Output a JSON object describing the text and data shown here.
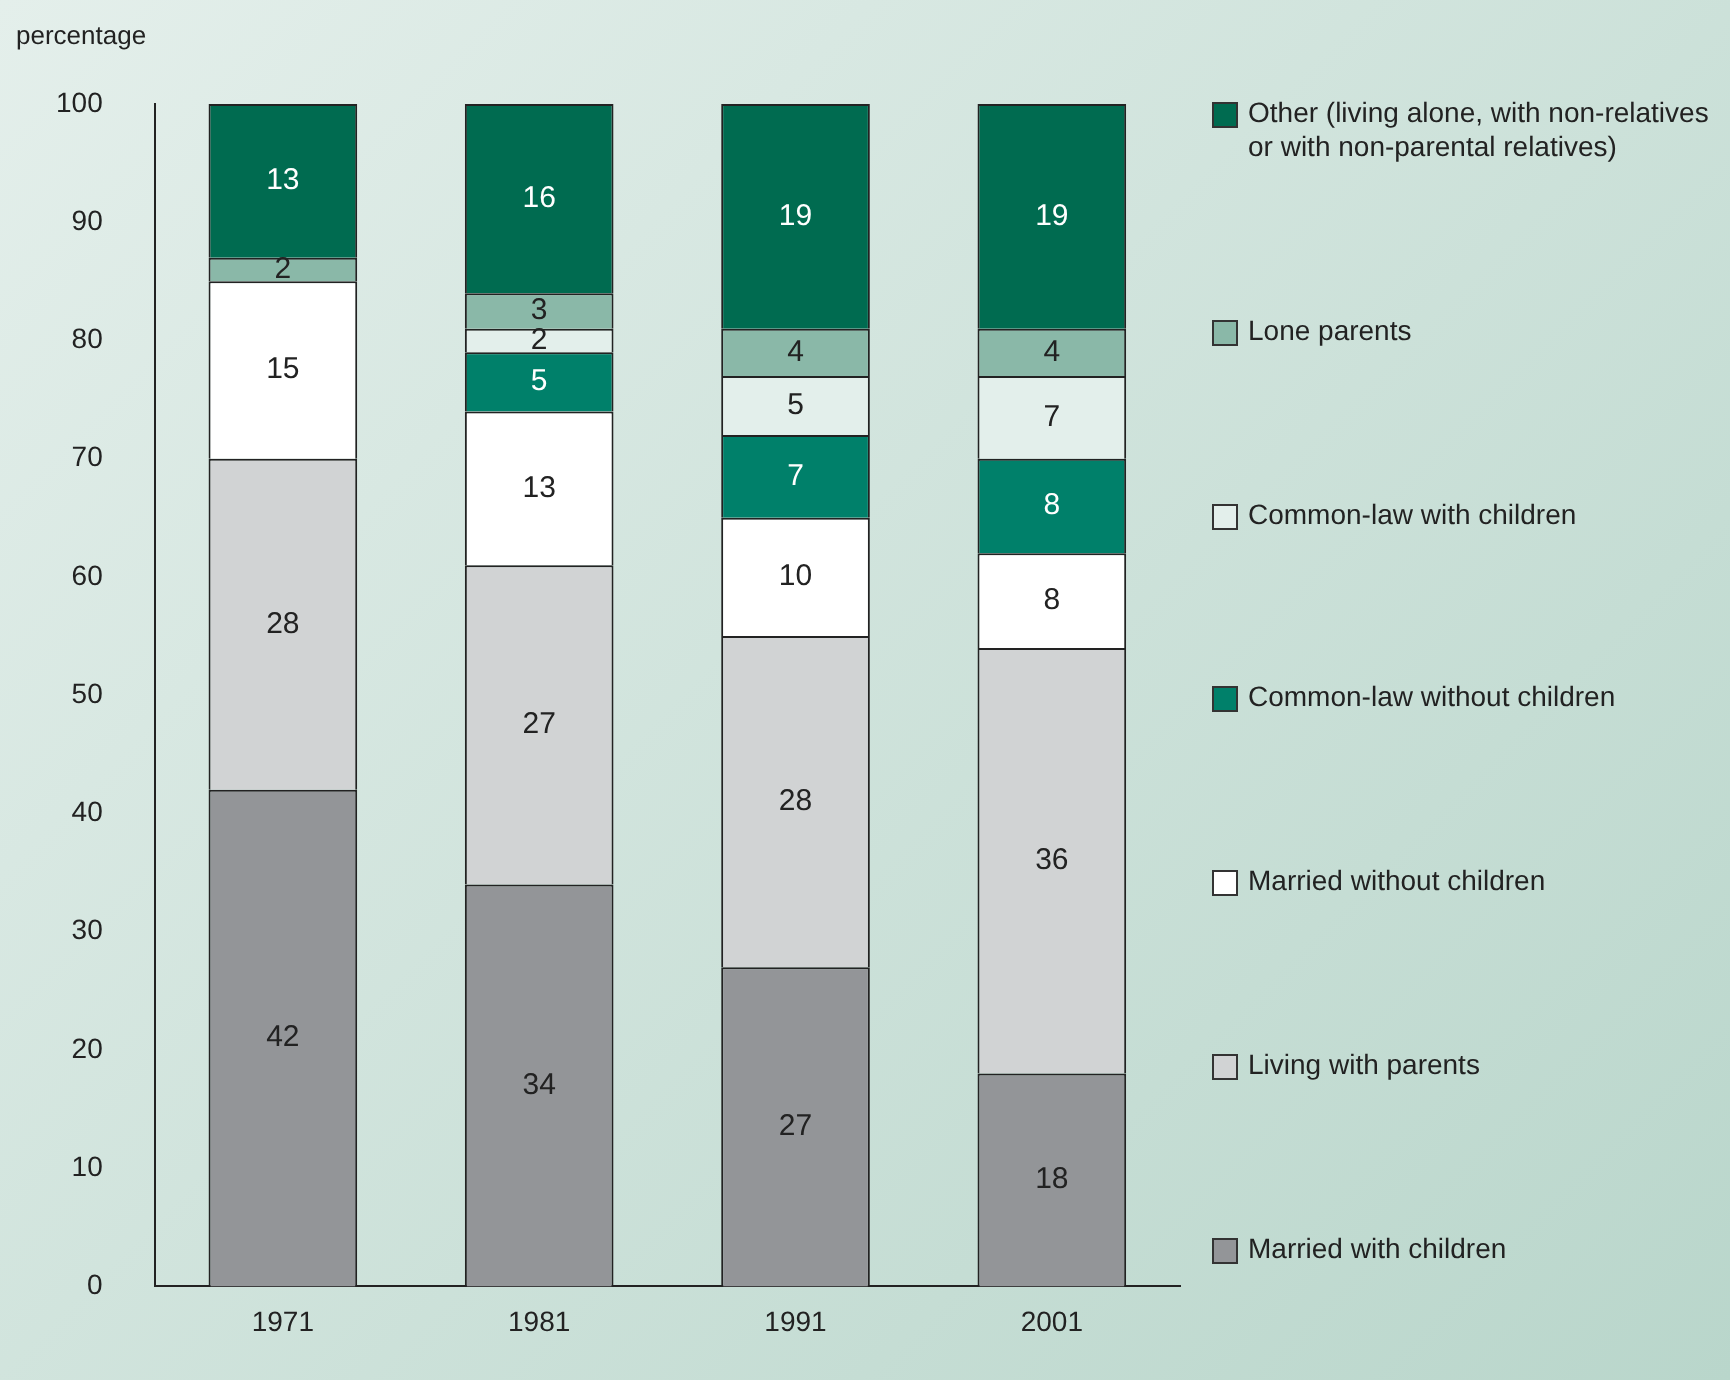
{
  "chart_data": {
    "type": "bar",
    "ylabel": "percentage",
    "categories": [
      "1971",
      "1981",
      "1991",
      "2001"
    ],
    "stacked": true,
    "ylim": [
      0,
      100
    ],
    "yticks": [
      0,
      10,
      20,
      30,
      40,
      50,
      60,
      70,
      80,
      90,
      100
    ],
    "grid": false,
    "legend": "right",
    "data_labels": true,
    "series": [
      {
        "name": "Married with children",
        "color": "#939598",
        "values": [
          42,
          34,
          27,
          18
        ]
      },
      {
        "name": "Living with parents",
        "color": "#d1d3d4",
        "values": [
          28,
          27,
          28,
          36
        ]
      },
      {
        "name": "Married without children",
        "color": "#ffffff",
        "values": [
          15,
          13,
          10,
          8
        ]
      },
      {
        "name": "Common-law without children",
        "color": "#00806a",
        "values": [
          null,
          5,
          7,
          8
        ]
      },
      {
        "name": "Common-law with children",
        "color": "#e3efeb",
        "values": [
          null,
          2,
          5,
          7
        ]
      },
      {
        "name": "Lone parents",
        "color": "#8ab8a8",
        "values": [
          2,
          3,
          4,
          4
        ]
      },
      {
        "name": "Other (living alone, with non-relatives or with non-parental relatives)",
        "color": "#006b50",
        "values": [
          13,
          16,
          19,
          19
        ]
      }
    ]
  }
}
